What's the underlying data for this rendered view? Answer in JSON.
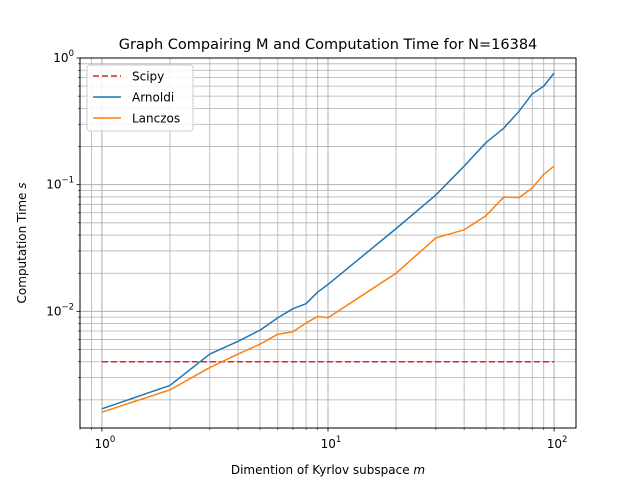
{
  "chart_data": {
    "type": "line",
    "title": "Graph Compairing M and Computation Time for N=16384",
    "xlabel": "Dimention of Kyrlov subspace ",
    "xlabel_var": "m",
    "ylabel": "Computation Time ",
    "ylabel_var": "s",
    "xscale": "log",
    "yscale": "log",
    "xlim": [
      0.8,
      125
    ],
    "ylim": [
      0.0012,
      1.0
    ],
    "grid": "both (major and minor)",
    "legend_position": "top-left",
    "x_major_ticks": [
      {
        "value": 1,
        "base": "10",
        "exp": "0"
      },
      {
        "value": 10,
        "base": "10",
        "exp": "1"
      },
      {
        "value": 100,
        "base": "10",
        "exp": "2"
      }
    ],
    "y_major_ticks": [
      {
        "value": 0.01,
        "base": "10",
        "exp": "−2"
      },
      {
        "value": 0.1,
        "base": "10",
        "exp": "−1"
      },
      {
        "value": 1,
        "base": "10",
        "exp": "0"
      }
    ],
    "series": [
      {
        "name": "Scipy",
        "color": "#d62728",
        "style": "dashed",
        "x": [
          1,
          100
        ],
        "y": [
          0.004,
          0.004
        ]
      },
      {
        "name": "Arnoldi",
        "color": "#1f77b4",
        "style": "solid",
        "x": [
          1,
          2,
          3,
          4,
          5,
          6,
          7,
          8,
          9,
          10,
          20,
          30,
          40,
          50,
          60,
          70,
          80,
          90,
          100
        ],
        "y": [
          0.0017,
          0.0026,
          0.0046,
          0.0058,
          0.0071,
          0.0089,
          0.0105,
          0.0115,
          0.0142,
          0.0163,
          0.045,
          0.083,
          0.14,
          0.215,
          0.28,
          0.38,
          0.52,
          0.6,
          0.76
        ]
      },
      {
        "name": "Lanczos",
        "color": "#ff7f0e",
        "style": "solid",
        "x": [
          1,
          2,
          3,
          4,
          5,
          6,
          7,
          8,
          9,
          10,
          20,
          30,
          40,
          50,
          60,
          70,
          80,
          90,
          100
        ],
        "y": [
          0.0016,
          0.0024,
          0.0036,
          0.0046,
          0.0055,
          0.0066,
          0.0069,
          0.0081,
          0.0091,
          0.0089,
          0.02,
          0.038,
          0.044,
          0.057,
          0.08,
          0.079,
          0.094,
          0.121,
          0.14
        ]
      }
    ]
  }
}
